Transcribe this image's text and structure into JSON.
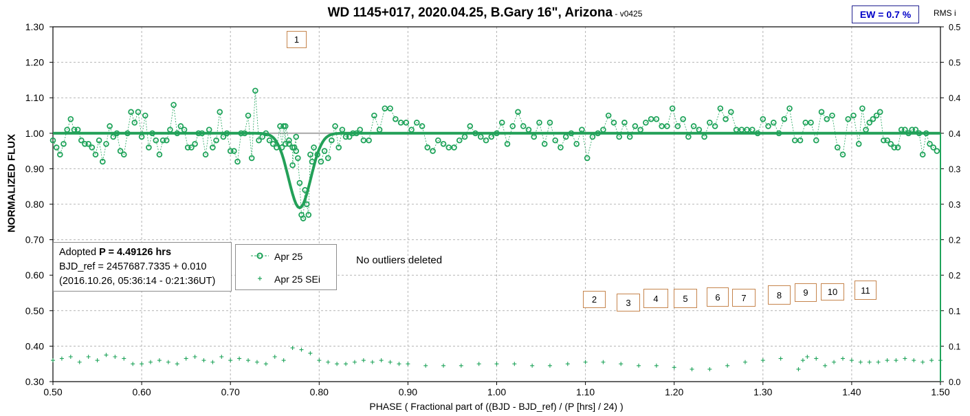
{
  "title": {
    "main": "WD 1145+017, 2020.04.25, B.Gary 16\", Arizona",
    "version": " -  v0425"
  },
  "ew_label": "EW = 0.7 %",
  "rms_label": "RMS i",
  "info": {
    "line1_prefix": "Adopted ",
    "line1_bold": "P = 4.49126 hrs",
    "line2": "BJD_ref = 2457687.7335 + 0.010",
    "line3": "(2016.10.26, 05:36:14 - 0:21:36UT)"
  },
  "note": "No outliers deleted",
  "markers": [
    "1",
    "2",
    "3",
    "4",
    "5",
    "6",
    "7",
    "8",
    "9",
    "10",
    "11"
  ],
  "colors": {
    "series": "#1fa35a",
    "model": "#23a058",
    "grid": "#b4b4b4",
    "marker_border": "#c5844c"
  },
  "chart_data": {
    "type": "scatter",
    "xlabel": "PHASE ( Fractional part of ((BJD - BJD_ref) / (P [hrs] / 24) )",
    "ylabel": "NORMALIZED FLUX",
    "y2label": "RMS i",
    "xlim": [
      0.5,
      1.5
    ],
    "ylim": [
      0.3,
      1.3
    ],
    "y2lim": [
      0.0,
      0.5
    ],
    "x_ticks": [
      "0.50",
      "0.60",
      "0.70",
      "0.80",
      "0.90",
      "1.00",
      "1.10",
      "1.20",
      "1.30",
      "1.40",
      "1.50"
    ],
    "y_ticks": [
      "0.30",
      "0.40",
      "0.50",
      "0.60",
      "0.70",
      "0.80",
      "0.90",
      "1.00",
      "1.10",
      "1.20",
      "1.30"
    ],
    "y2_ticks": [
      "0.0",
      "0.1",
      "0.1",
      "0.2",
      "0.2",
      "0.3",
      "0.3",
      "0.4",
      "0.4",
      "0.5",
      "0.5"
    ],
    "grid": true,
    "legend_position": "inside-left",
    "reference_level": 1.0,
    "model_dip": {
      "center": 0.778,
      "depth": 0.21,
      "width": 0.0125
    },
    "series": [
      {
        "name": "Apr 25",
        "style": "open circles, dashed line",
        "points": [
          [
            0.5,
            0.98
          ],
          [
            0.504,
            0.96
          ],
          [
            0.508,
            0.94
          ],
          [
            0.512,
            0.97
          ],
          [
            0.516,
            1.01
          ],
          [
            0.52,
            1.04
          ],
          [
            0.524,
            1.01
          ],
          [
            0.528,
            1.01
          ],
          [
            0.532,
            0.98
          ],
          [
            0.536,
            0.97
          ],
          [
            0.54,
            0.97
          ],
          [
            0.544,
            0.96
          ],
          [
            0.548,
            0.94
          ],
          [
            0.552,
            0.98
          ],
          [
            0.556,
            0.92
          ],
          [
            0.56,
            0.97
          ],
          [
            0.564,
            1.02
          ],
          [
            0.568,
            0.99
          ],
          [
            0.572,
            1.0
          ],
          [
            0.576,
            0.95
          ],
          [
            0.58,
            0.94
          ],
          [
            0.584,
            1.0
          ],
          [
            0.588,
            1.06
          ],
          [
            0.592,
            1.03
          ],
          [
            0.596,
            1.06
          ],
          [
            0.6,
            0.99
          ],
          [
            0.604,
            1.05
          ],
          [
            0.608,
            0.96
          ],
          [
            0.612,
            1.0
          ],
          [
            0.616,
            0.98
          ],
          [
            0.62,
            0.94
          ],
          [
            0.624,
            0.98
          ],
          [
            0.628,
            0.98
          ],
          [
            0.632,
            1.01
          ],
          [
            0.636,
            1.08
          ],
          [
            0.64,
            1.0
          ],
          [
            0.644,
            1.02
          ],
          [
            0.648,
            1.01
          ],
          [
            0.652,
            0.96
          ],
          [
            0.656,
            0.96
          ],
          [
            0.66,
            0.97
          ],
          [
            0.664,
            1.0
          ],
          [
            0.668,
            1.0
          ],
          [
            0.672,
            0.94
          ],
          [
            0.676,
            1.01
          ],
          [
            0.68,
            0.96
          ],
          [
            0.684,
            0.98
          ],
          [
            0.688,
            1.06
          ],
          [
            0.692,
            0.99
          ],
          [
            0.696,
            1.0
          ],
          [
            0.7,
            0.95
          ],
          [
            0.704,
            0.95
          ],
          [
            0.708,
            0.92
          ],
          [
            0.712,
            1.0
          ],
          [
            0.716,
            1.0
          ],
          [
            0.72,
            1.05
          ],
          [
            0.724,
            0.93
          ],
          [
            0.728,
            1.12
          ],
          [
            0.732,
            0.98
          ],
          [
            0.736,
            0.99
          ],
          [
            0.74,
            1.0
          ],
          [
            0.744,
            0.98
          ],
          [
            0.748,
            0.97
          ],
          [
            0.752,
            0.96
          ],
          [
            0.756,
            1.02
          ],
          [
            0.76,
            1.02
          ],
          [
            0.762,
            0.97
          ],
          [
            0.766,
            0.98
          ],
          [
            0.77,
            0.96
          ],
          [
            0.774,
            0.99
          ],
          [
            0.758,
            0.96
          ],
          [
            0.762,
            1.02
          ],
          [
            0.766,
            0.97
          ],
          [
            0.77,
            0.91
          ],
          [
            0.772,
            0.96
          ],
          [
            0.774,
            0.95
          ],
          [
            0.776,
            0.93
          ],
          [
            0.778,
            0.86
          ],
          [
            0.78,
            0.77
          ],
          [
            0.782,
            0.76
          ],
          [
            0.784,
            0.84
          ],
          [
            0.786,
            0.8
          ],
          [
            0.788,
            0.77
          ],
          [
            0.79,
            0.94
          ],
          [
            0.792,
            0.92
          ],
          [
            0.794,
            0.96
          ],
          [
            0.798,
            0.94
          ],
          [
            0.802,
            0.92
          ],
          [
            0.806,
            0.95
          ],
          [
            0.81,
            0.93
          ],
          [
            0.814,
            0.98
          ],
          [
            0.818,
            1.02
          ],
          [
            0.822,
            0.96
          ],
          [
            0.826,
            1.01
          ],
          [
            0.83,
            0.99
          ],
          [
            0.834,
            0.99
          ],
          [
            0.838,
            1.0
          ],
          [
            0.842,
            1.0
          ],
          [
            0.846,
            1.01
          ],
          [
            0.85,
            0.98
          ],
          [
            0.856,
            0.98
          ],
          [
            0.862,
            1.05
          ],
          [
            0.868,
            1.01
          ],
          [
            0.874,
            1.07
          ],
          [
            0.88,
            1.07
          ],
          [
            0.886,
            1.04
          ],
          [
            0.892,
            1.03
          ],
          [
            0.898,
            1.03
          ],
          [
            0.904,
            1.01
          ],
          [
            0.91,
            1.03
          ],
          [
            0.916,
            1.02
          ],
          [
            0.922,
            0.96
          ],
          [
            0.928,
            0.95
          ],
          [
            0.934,
            0.98
          ],
          [
            0.94,
            0.97
          ],
          [
            0.946,
            0.96
          ],
          [
            0.952,
            0.96
          ],
          [
            0.958,
            0.98
          ],
          [
            0.964,
            0.99
          ],
          [
            0.97,
            1.02
          ],
          [
            0.976,
            1.0
          ],
          [
            0.982,
            0.99
          ],
          [
            0.988,
            0.98
          ],
          [
            0.994,
            0.99
          ],
          [
            1.0,
            1.0
          ],
          [
            1.006,
            1.03
          ],
          [
            1.012,
            0.97
          ],
          [
            1.018,
            1.02
          ],
          [
            1.024,
            1.06
          ],
          [
            1.03,
            1.02
          ],
          [
            1.036,
            1.01
          ],
          [
            1.042,
            0.99
          ],
          [
            1.048,
            1.03
          ],
          [
            1.054,
            0.97
          ],
          [
            1.06,
            1.03
          ],
          [
            1.066,
            0.98
          ],
          [
            1.072,
            0.96
          ],
          [
            1.078,
            0.99
          ],
          [
            1.084,
            1.0
          ],
          [
            1.09,
            0.97
          ],
          [
            1.096,
            1.01
          ],
          [
            1.102,
            0.93
          ],
          [
            1.108,
            0.99
          ],
          [
            1.114,
            1.0
          ],
          [
            1.12,
            1.01
          ],
          [
            1.126,
            1.05
          ],
          [
            1.132,
            1.03
          ],
          [
            1.138,
            0.99
          ],
          [
            1.144,
            1.03
          ],
          [
            1.15,
            0.99
          ],
          [
            1.156,
            1.02
          ],
          [
            1.162,
            1.01
          ],
          [
            1.168,
            1.03
          ],
          [
            1.174,
            1.04
          ],
          [
            1.18,
            1.04
          ],
          [
            1.186,
            1.02
          ],
          [
            1.192,
            1.02
          ],
          [
            1.198,
            1.07
          ],
          [
            1.204,
            1.02
          ],
          [
            1.21,
            1.04
          ],
          [
            1.216,
            0.99
          ],
          [
            1.222,
            1.02
          ],
          [
            1.228,
            1.01
          ],
          [
            1.234,
            0.99
          ],
          [
            1.24,
            1.03
          ],
          [
            1.246,
            1.02
          ],
          [
            1.252,
            1.07
          ],
          [
            1.258,
            1.04
          ],
          [
            1.264,
            1.06
          ],
          [
            1.27,
            1.01
          ],
          [
            1.276,
            1.01
          ],
          [
            1.282,
            1.01
          ],
          [
            1.288,
            1.01
          ],
          [
            1.294,
            1.0
          ],
          [
            1.3,
            1.04
          ],
          [
            1.306,
            1.02
          ],
          [
            1.312,
            1.03
          ],
          [
            1.318,
            1.0
          ],
          [
            1.324,
            1.04
          ],
          [
            1.33,
            1.07
          ],
          [
            1.336,
            0.98
          ],
          [
            1.342,
            0.98
          ],
          [
            1.348,
            1.03
          ],
          [
            1.354,
            1.03
          ],
          [
            1.36,
            0.98
          ],
          [
            1.366,
            1.06
          ],
          [
            1.372,
            1.04
          ],
          [
            1.378,
            1.05
          ],
          [
            1.384,
            0.96
          ],
          [
            1.39,
            0.94
          ],
          [
            1.396,
            1.04
          ],
          [
            1.402,
            1.05
          ],
          [
            1.408,
            0.97
          ],
          [
            1.412,
            1.07
          ],
          [
            1.416,
            1.01
          ],
          [
            1.42,
            1.03
          ],
          [
            1.424,
            1.04
          ],
          [
            1.428,
            1.05
          ],
          [
            1.432,
            1.06
          ],
          [
            1.436,
            0.98
          ],
          [
            1.44,
            0.98
          ],
          [
            1.444,
            0.97
          ],
          [
            1.448,
            0.96
          ],
          [
            1.452,
            0.96
          ],
          [
            1.456,
            1.01
          ],
          [
            1.46,
            1.01
          ],
          [
            1.464,
            1.0
          ],
          [
            1.468,
            1.01
          ],
          [
            1.472,
            1.01
          ],
          [
            1.476,
            1.0
          ],
          [
            1.48,
            0.94
          ],
          [
            1.484,
            1.0
          ],
          [
            1.488,
            0.97
          ],
          [
            1.492,
            0.96
          ],
          [
            1.496,
            0.95
          ]
        ]
      },
      {
        "name": "Apr 25 SEi",
        "style": "plus markers",
        "points": [
          [
            0.5,
            0.36
          ],
          [
            0.51,
            0.365
          ],
          [
            0.52,
            0.37
          ],
          [
            0.53,
            0.355
          ],
          [
            0.54,
            0.37
          ],
          [
            0.55,
            0.36
          ],
          [
            0.56,
            0.375
          ],
          [
            0.57,
            0.37
          ],
          [
            0.58,
            0.365
          ],
          [
            0.59,
            0.35
          ],
          [
            0.6,
            0.35
          ],
          [
            0.61,
            0.355
          ],
          [
            0.62,
            0.36
          ],
          [
            0.63,
            0.355
          ],
          [
            0.64,
            0.35
          ],
          [
            0.65,
            0.365
          ],
          [
            0.66,
            0.37
          ],
          [
            0.67,
            0.36
          ],
          [
            0.68,
            0.355
          ],
          [
            0.69,
            0.37
          ],
          [
            0.7,
            0.36
          ],
          [
            0.71,
            0.365
          ],
          [
            0.72,
            0.36
          ],
          [
            0.73,
            0.355
          ],
          [
            0.74,
            0.35
          ],
          [
            0.75,
            0.37
          ],
          [
            0.76,
            0.36
          ],
          [
            0.77,
            0.395
          ],
          [
            0.78,
            0.39
          ],
          [
            0.79,
            0.38
          ],
          [
            0.8,
            0.36
          ],
          [
            0.81,
            0.355
          ],
          [
            0.82,
            0.35
          ],
          [
            0.83,
            0.35
          ],
          [
            0.84,
            0.355
          ],
          [
            0.85,
            0.36
          ],
          [
            0.86,
            0.355
          ],
          [
            0.87,
            0.36
          ],
          [
            0.88,
            0.355
          ],
          [
            0.89,
            0.35
          ],
          [
            0.9,
            0.35
          ],
          [
            0.92,
            0.345
          ],
          [
            0.94,
            0.345
          ],
          [
            0.96,
            0.345
          ],
          [
            0.98,
            0.35
          ],
          [
            1.0,
            0.35
          ],
          [
            1.02,
            0.35
          ],
          [
            1.04,
            0.345
          ],
          [
            1.06,
            0.345
          ],
          [
            1.08,
            0.35
          ],
          [
            1.1,
            0.355
          ],
          [
            1.12,
            0.355
          ],
          [
            1.14,
            0.35
          ],
          [
            1.16,
            0.345
          ],
          [
            1.18,
            0.345
          ],
          [
            1.2,
            0.34
          ],
          [
            1.22,
            0.335
          ],
          [
            1.24,
            0.335
          ],
          [
            1.26,
            0.345
          ],
          [
            1.28,
            0.355
          ],
          [
            1.3,
            0.36
          ],
          [
            1.32,
            0.365
          ],
          [
            1.34,
            0.335
          ],
          [
            1.345,
            0.36
          ],
          [
            1.35,
            0.37
          ],
          [
            1.36,
            0.365
          ],
          [
            1.37,
            0.345
          ],
          [
            1.38,
            0.355
          ],
          [
            1.39,
            0.365
          ],
          [
            1.4,
            0.36
          ],
          [
            1.41,
            0.355
          ],
          [
            1.42,
            0.355
          ],
          [
            1.43,
            0.355
          ],
          [
            1.44,
            0.36
          ],
          [
            1.45,
            0.36
          ],
          [
            1.46,
            0.365
          ],
          [
            1.47,
            0.36
          ],
          [
            1.48,
            0.355
          ],
          [
            1.49,
            0.36
          ],
          [
            1.5,
            0.36
          ]
        ]
      }
    ]
  }
}
